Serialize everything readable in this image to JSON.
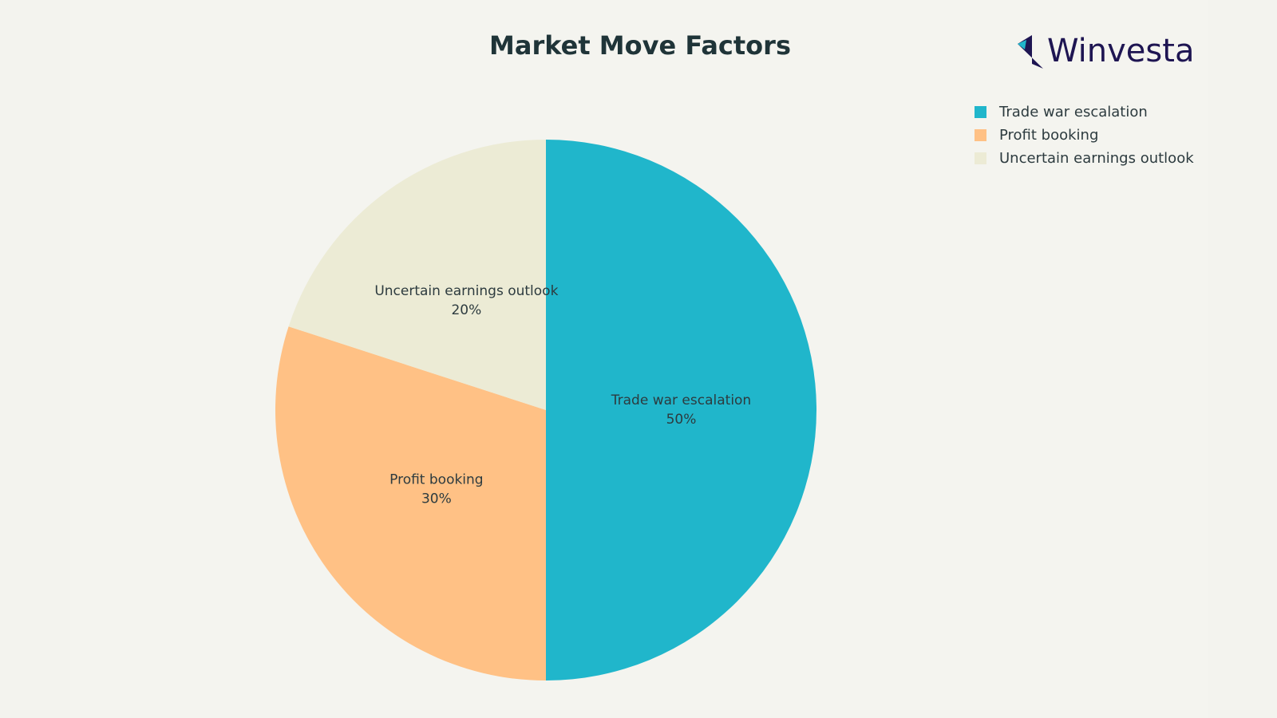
{
  "brand": "Winvesta",
  "chart_data": {
    "type": "pie",
    "title": "Market Move Factors",
    "categories": [
      "Trade war escalation",
      "Profit booking",
      "Uncertain earnings outlook"
    ],
    "values": [
      50,
      30,
      20
    ],
    "value_labels": [
      "50%",
      "30%",
      "20%"
    ],
    "colors": [
      "#20b6cb",
      "#ffc185",
      "#ecebd5"
    ],
    "legend": "top-right"
  }
}
